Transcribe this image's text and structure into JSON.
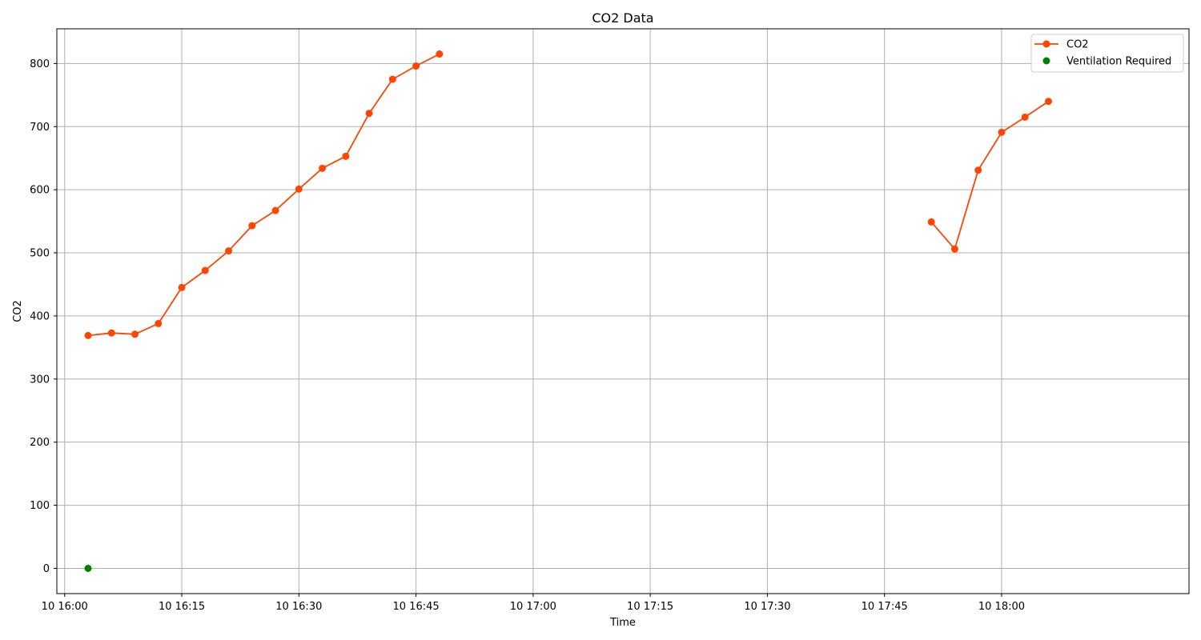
{
  "chart_data": {
    "type": "line",
    "title": "CO2 Data",
    "xlabel": "Time",
    "ylabel": "CO2",
    "xlim": [
      "10 15:59",
      "10 18:24"
    ],
    "ylim": [
      -40,
      855
    ],
    "x_ticks": [
      {
        "t": "10 16:00",
        "label": "10 16:00"
      },
      {
        "t": "10 16:15",
        "label": "10 16:15"
      },
      {
        "t": "10 16:30",
        "label": "10 16:30"
      },
      {
        "t": "10 16:45",
        "label": "10 16:45"
      },
      {
        "t": "10 17:00",
        "label": "10 17:00"
      },
      {
        "t": "10 17:15",
        "label": "10 17:15"
      },
      {
        "t": "10 17:30",
        "label": "10 17:30"
      },
      {
        "t": "10 17:45",
        "label": "10 17:45"
      },
      {
        "t": "10 18:00",
        "label": "10 18:00"
      }
    ],
    "y_ticks": [
      0,
      100,
      200,
      300,
      400,
      500,
      600,
      700,
      800
    ],
    "grid": true,
    "legend_position": "top-right",
    "series": [
      {
        "name": "CO2",
        "kind": "line",
        "color": "#ff4500",
        "segments": [
          [
            {
              "t": "10 16:03",
              "y": 369
            },
            {
              "t": "10 16:06",
              "y": 373
            },
            {
              "t": "10 16:09",
              "y": 371
            },
            {
              "t": "10 16:12",
              "y": 388
            },
            {
              "t": "10 16:15",
              "y": 445
            },
            {
              "t": "10 16:18",
              "y": 472
            },
            {
              "t": "10 16:21",
              "y": 503
            },
            {
              "t": "10 16:24",
              "y": 543
            },
            {
              "t": "10 16:27",
              "y": 567
            },
            {
              "t": "10 16:30",
              "y": 601
            },
            {
              "t": "10 16:33",
              "y": 634
            },
            {
              "t": "10 16:36",
              "y": 653
            },
            {
              "t": "10 16:39",
              "y": 721
            },
            {
              "t": "10 16:42",
              "y": 775
            },
            {
              "t": "10 16:45",
              "y": 796
            },
            {
              "t": "10 16:48",
              "y": 815
            }
          ],
          [
            {
              "t": "10 17:51",
              "y": 549
            },
            {
              "t": "10 17:54",
              "y": 506
            },
            {
              "t": "10 17:57",
              "y": 631
            },
            {
              "t": "10 18:00",
              "y": 691
            },
            {
              "t": "10 18:03",
              "y": 715
            },
            {
              "t": "10 18:06",
              "y": 740
            }
          ]
        ]
      },
      {
        "name": "Ventilation Required",
        "kind": "scatter",
        "color": "#008000",
        "points": [
          {
            "t": "10 16:03",
            "y": 0
          }
        ]
      }
    ]
  }
}
